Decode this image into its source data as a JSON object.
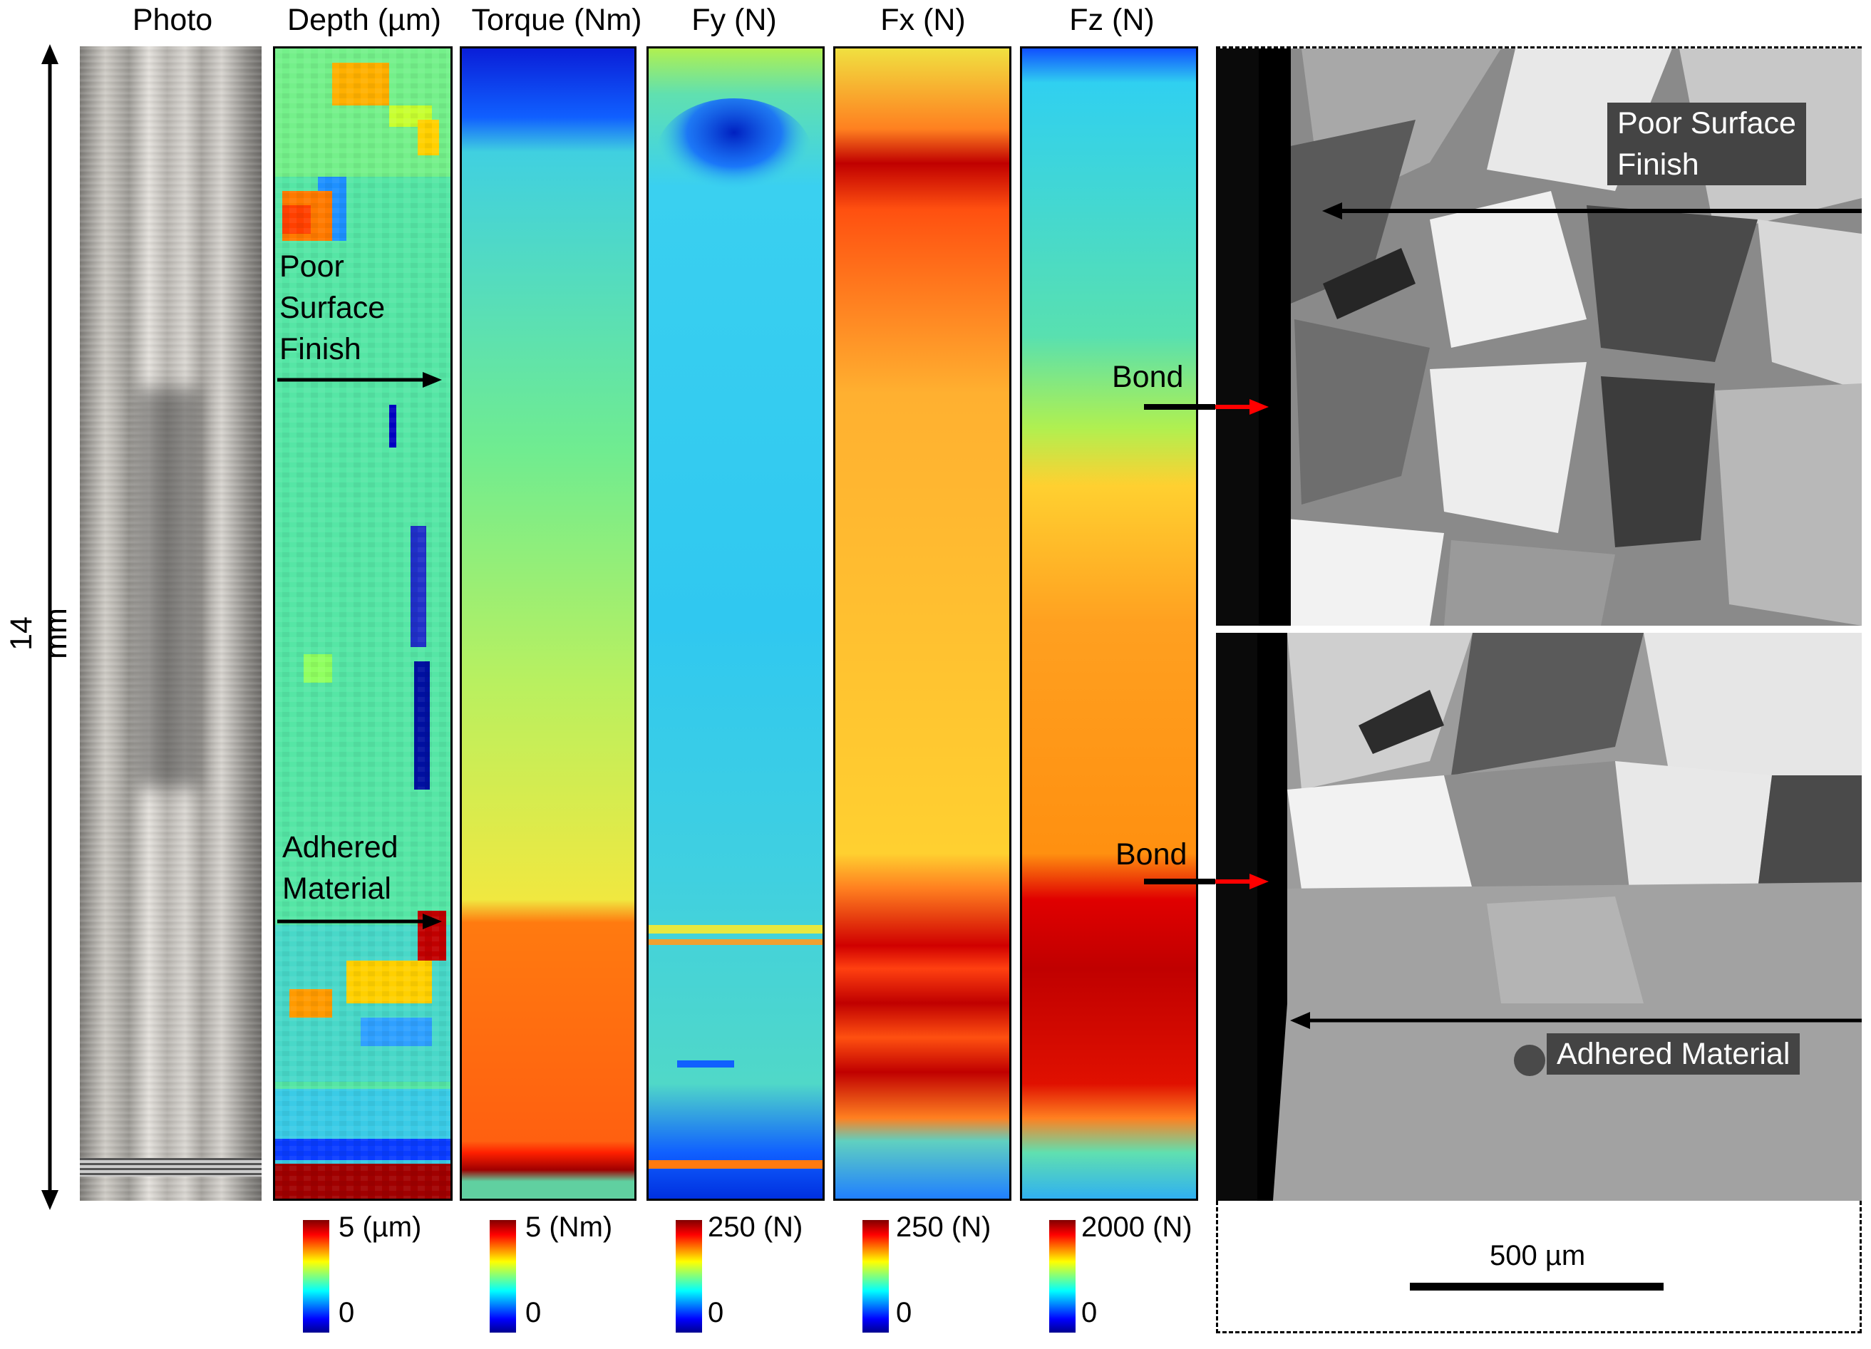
{
  "panel_titles": {
    "photo": "Photo",
    "depth": "Depth (µm)",
    "torque": "Torque (Nm)",
    "fy": "Fy (N)",
    "fx": "Fx (N)",
    "fz": "Fz (N)"
  },
  "scale_axis": {
    "length_label": "14 mm"
  },
  "colorbars": [
    {
      "id": "depth",
      "max_label": "5 (µm)",
      "min_label": "0"
    },
    {
      "id": "torque",
      "max_label": "5 (Nm)",
      "min_label": "0"
    },
    {
      "id": "fy",
      "max_label": "250 (N)",
      "min_label": "0"
    },
    {
      "id": "fx",
      "max_label": "250 (N)",
      "min_label": "0"
    },
    {
      "id": "fz",
      "max_label": "2000 (N)",
      "min_label": "0"
    }
  ],
  "colormap": [
    "#00008f",
    "#0000ff",
    "#00ffff",
    "#ffff00",
    "#ff0000",
    "#800000"
  ],
  "depth_annotations": {
    "poor_surface": [
      "Poor",
      "Surface",
      "Finish"
    ],
    "adhered": [
      "Adhered",
      "Material"
    ]
  },
  "micrographs": {
    "bond_label_top": "Bond",
    "bond_label_bottom": "Bond",
    "poor_surface_box": [
      "Poor Surface",
      "Finish"
    ],
    "adhered_box": "Adhered Material",
    "scale_bar_label": "500 µm"
  }
}
